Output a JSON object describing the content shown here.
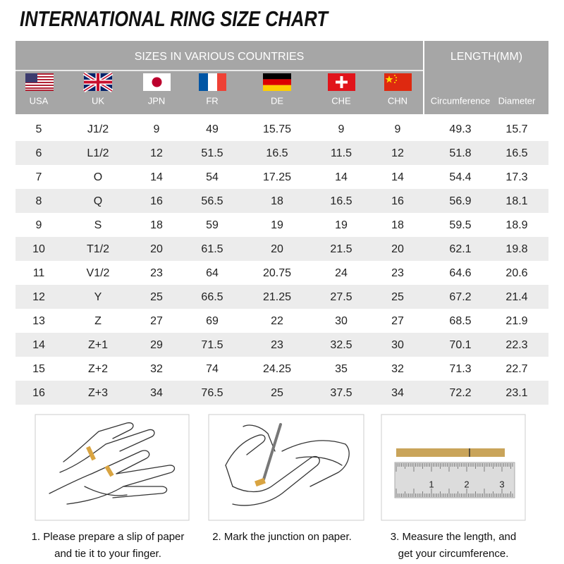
{
  "header": {
    "title": "INTERNATIONAL RING SIZE CHART"
  },
  "table": {
    "group_headers": [
      "SIZES IN VARIOUS COUNTRIES",
      "LENGTH(MM)"
    ],
    "columns": [
      "USA",
      "UK",
      "JPN",
      "FR",
      "DE",
      "CHE",
      "CHN",
      "Circumference",
      "Diameter"
    ],
    "rows": [
      [
        "5",
        "J1/2",
        "9",
        "49",
        "15.75",
        "9",
        "9",
        "49.3",
        "15.7"
      ],
      [
        "6",
        "L1/2",
        "12",
        "51.5",
        "16.5",
        "11.5",
        "12",
        "51.8",
        "16.5"
      ],
      [
        "7",
        "O",
        "14",
        "54",
        "17.25",
        "14",
        "14",
        "54.4",
        "17.3"
      ],
      [
        "8",
        "Q",
        "16",
        "56.5",
        "18",
        "16.5",
        "16",
        "56.9",
        "18.1"
      ],
      [
        "9",
        "S",
        "18",
        "59",
        "19",
        "19",
        "18",
        "59.5",
        "18.9"
      ],
      [
        "10",
        "T1/2",
        "20",
        "61.5",
        "20",
        "21.5",
        "20",
        "62.1",
        "19.8"
      ],
      [
        "11",
        "V1/2",
        "23",
        "64",
        "20.75",
        "24",
        "23",
        "64.6",
        "20.6"
      ],
      [
        "12",
        "Y",
        "25",
        "66.5",
        "21.25",
        "27.5",
        "25",
        "67.2",
        "21.4"
      ],
      [
        "13",
        "Z",
        "27",
        "69",
        "22",
        "30",
        "27",
        "68.5",
        "21.9"
      ],
      [
        "14",
        "Z+1",
        "29",
        "71.5",
        "23",
        "32.5",
        "30",
        "70.1",
        "22.3"
      ],
      [
        "15",
        "Z+2",
        "32",
        "74",
        "24.25",
        "35",
        "32",
        "71.3",
        "22.7"
      ],
      [
        "16",
        "Z+3",
        "34",
        "76.5",
        "25",
        "37.5",
        "34",
        "72.2",
        "23.1"
      ]
    ]
  },
  "steps": [
    {
      "lines": [
        "1. Please prepare a slip of paper",
        "and tie it to your finger."
      ]
    },
    {
      "lines": [
        "2. Mark the junction on paper."
      ]
    },
    {
      "lines": [
        "3. Measure the length, and",
        "get your circumference."
      ]
    }
  ],
  "ruler_labels": [
    "1",
    "2",
    "3"
  ]
}
